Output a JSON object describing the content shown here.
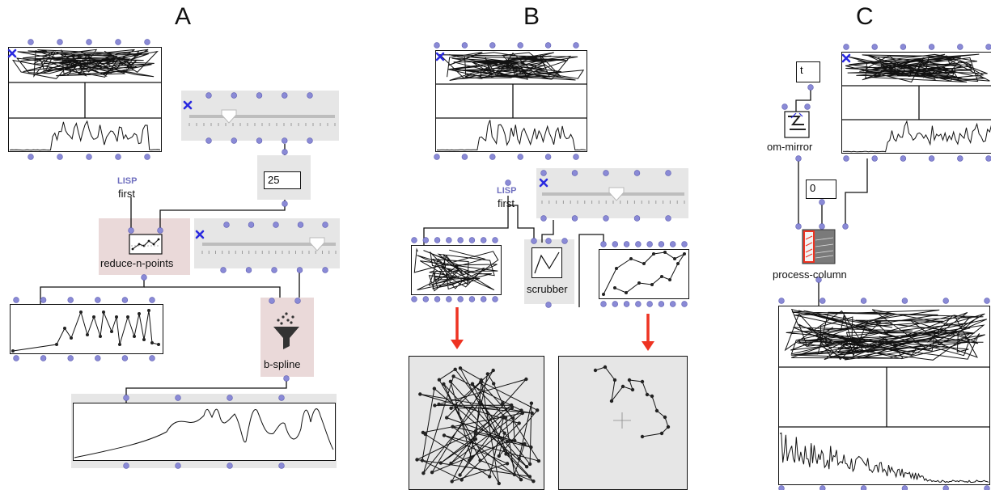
{
  "panels": {
    "a": "A",
    "b": "B",
    "c": "C"
  },
  "panel_a": {
    "lisp_label": "LISP",
    "first_label": "first",
    "number_value": "25",
    "reduce_label": "reduce-n-points",
    "bspline_label": "b-spline"
  },
  "panel_b": {
    "lisp_label": "LISP",
    "first_label": "first",
    "scrubber_label": "scrubber"
  },
  "panel_c": {
    "t_value": "t",
    "mirror_label": "om-mirror",
    "zero_value": "0",
    "process_label": "process-column"
  },
  "colors": {
    "inlet": "#8a8ad6",
    "arrow": "#ee3322",
    "close": "#2a2ae0"
  }
}
